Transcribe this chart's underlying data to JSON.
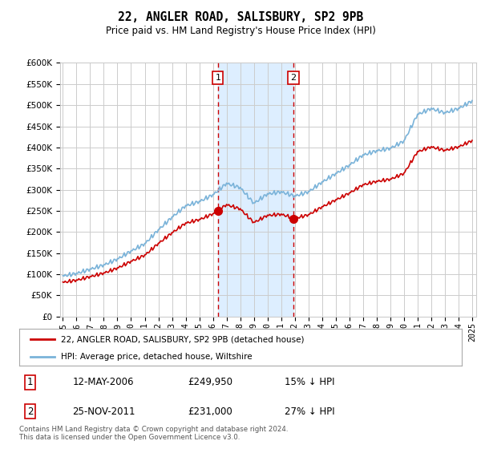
{
  "title": "22, ANGLER ROAD, SALISBURY, SP2 9PB",
  "subtitle": "Price paid vs. HM Land Registry's House Price Index (HPI)",
  "footer": "Contains HM Land Registry data © Crown copyright and database right 2024.\nThis data is licensed under the Open Government Licence v3.0.",
  "legend_line1": "22, ANGLER ROAD, SALISBURY, SP2 9PB (detached house)",
  "legend_line2": "HPI: Average price, detached house, Wiltshire",
  "sale1_x": 2006.37,
  "sale1_y": 249950,
  "sale2_x": 2011.9,
  "sale2_y": 231000,
  "shade_x1": 2006.37,
  "shade_x2": 2011.9,
  "ylim": [
    0,
    600000
  ],
  "xlim": [
    1994.8,
    2025.3
  ],
  "red_color": "#cc0000",
  "blue_color": "#7ab3d9",
  "shade_color": "#ddeeff",
  "grid_color": "#cccccc",
  "bg_color": "#ffffff",
  "hpi_years": [
    1995,
    1995.083,
    1995.167,
    1995.25,
    1995.333,
    1995.417,
    1995.5,
    1995.583,
    1995.667,
    1995.75,
    1995.833,
    1995.917,
    1996,
    1996.083,
    1996.167,
    1996.25,
    1996.333,
    1996.417,
    1996.5,
    1996.583,
    1996.667,
    1996.75,
    1996.833,
    1996.917,
    1997,
    1997.083,
    1997.167,
    1997.25,
    1997.333,
    1997.417,
    1997.5,
    1997.583,
    1997.667,
    1997.75,
    1997.833,
    1997.917,
    1998,
    1998.083,
    1998.167,
    1998.25,
    1998.333,
    1998.417,
    1998.5,
    1998.583,
    1998.667,
    1998.75,
    1998.833,
    1998.917,
    1999,
    1999.083,
    1999.167,
    1999.25,
    1999.333,
    1999.417,
    1999.5,
    1999.583,
    1999.667,
    1999.75,
    1999.833,
    1999.917,
    2000,
    2000.083,
    2000.167,
    2000.25,
    2000.333,
    2000.417,
    2000.5,
    2000.583,
    2000.667,
    2000.75,
    2000.833,
    2000.917,
    2001,
    2001.083,
    2001.167,
    2001.25,
    2001.333,
    2001.417,
    2001.5,
    2001.583,
    2001.667,
    2001.75,
    2001.833,
    2001.917,
    2002,
    2002.083,
    2002.167,
    2002.25,
    2002.333,
    2002.417,
    2002.5,
    2002.583,
    2002.667,
    2002.75,
    2002.833,
    2002.917,
    2003,
    2003.083,
    2003.167,
    2003.25,
    2003.333,
    2003.417,
    2003.5,
    2003.583,
    2003.667,
    2003.75,
    2003.833,
    2003.917,
    2004,
    2004.083,
    2004.167,
    2004.25,
    2004.333,
    2004.417,
    2004.5,
    2004.583,
    2004.667,
    2004.75,
    2004.833,
    2004.917,
    2005,
    2005.083,
    2005.167,
    2005.25,
    2005.333,
    2005.417,
    2005.5,
    2005.583,
    2005.667,
    2005.75,
    2005.833,
    2005.917,
    2006,
    2006.083,
    2006.167,
    2006.25,
    2006.333,
    2006.417,
    2006.5,
    2006.583,
    2006.667,
    2006.75,
    2006.833,
    2006.917,
    2007,
    2007.083,
    2007.167,
    2007.25,
    2007.333,
    2007.417,
    2007.5,
    2007.583,
    2007.667,
    2007.75,
    2007.833,
    2007.917,
    2008,
    2008.083,
    2008.167,
    2008.25,
    2008.333,
    2008.417,
    2008.5,
    2008.583,
    2008.667,
    2008.75,
    2008.833,
    2008.917,
    2009,
    2009.083,
    2009.167,
    2009.25,
    2009.333,
    2009.417,
    2009.5,
    2009.583,
    2009.667,
    2009.75,
    2009.833,
    2009.917,
    2010,
    2010.083,
    2010.167,
    2010.25,
    2010.333,
    2010.417,
    2010.5,
    2010.583,
    2010.667,
    2010.75,
    2010.833,
    2010.917,
    2011,
    2011.083,
    2011.167,
    2011.25,
    2011.333,
    2011.417,
    2011.5,
    2011.583,
    2011.667,
    2011.75,
    2011.833,
    2011.917,
    2012,
    2012.083,
    2012.167,
    2012.25,
    2012.333,
    2012.417,
    2012.5,
    2012.583,
    2012.667,
    2012.75,
    2012.833,
    2012.917,
    2013,
    2013.083,
    2013.167,
    2013.25,
    2013.333,
    2013.417,
    2013.5,
    2013.583,
    2013.667,
    2013.75,
    2013.833,
    2013.917,
    2014,
    2014.083,
    2014.167,
    2014.25,
    2014.333,
    2014.417,
    2014.5,
    2014.583,
    2014.667,
    2014.75,
    2014.833,
    2014.917,
    2015,
    2015.083,
    2015.167,
    2015.25,
    2015.333,
    2015.417,
    2015.5,
    2015.583,
    2015.667,
    2015.75,
    2015.833,
    2015.917,
    2016,
    2016.083,
    2016.167,
    2016.25,
    2016.333,
    2016.417,
    2016.5,
    2016.583,
    2016.667,
    2016.75,
    2016.833,
    2016.917,
    2017,
    2017.083,
    2017.167,
    2017.25,
    2017.333,
    2017.417,
    2017.5,
    2017.583,
    2017.667,
    2017.75,
    2017.833,
    2017.917,
    2018,
    2018.083,
    2018.167,
    2018.25,
    2018.333,
    2018.417,
    2018.5,
    2018.583,
    2018.667,
    2018.75,
    2018.833,
    2018.917,
    2019,
    2019.083,
    2019.167,
    2019.25,
    2019.333,
    2019.417,
    2019.5,
    2019.583,
    2019.667,
    2019.75,
    2019.833,
    2019.917,
    2020,
    2020.083,
    2020.167,
    2020.25,
    2020.333,
    2020.417,
    2020.5,
    2020.583,
    2020.667,
    2020.75,
    2020.833,
    2020.917,
    2021,
    2021.083,
    2021.167,
    2021.25,
    2021.333,
    2021.417,
    2021.5,
    2021.583,
    2021.667,
    2021.75,
    2021.833,
    2021.917,
    2022,
    2022.083,
    2022.167,
    2022.25,
    2022.333,
    2022.417,
    2022.5,
    2022.583,
    2022.667,
    2022.75,
    2022.833,
    2022.917,
    2023,
    2023.083,
    2023.167,
    2023.25,
    2023.333,
    2023.417,
    2023.5,
    2023.583,
    2023.667,
    2023.75,
    2023.833,
    2023.917,
    2024,
    2024.083,
    2024.167,
    2024.25,
    2024.333,
    2024.417,
    2024.5,
    2024.583,
    2024.667,
    2024.75,
    2024.833,
    2024.917,
    2025
  ]
}
